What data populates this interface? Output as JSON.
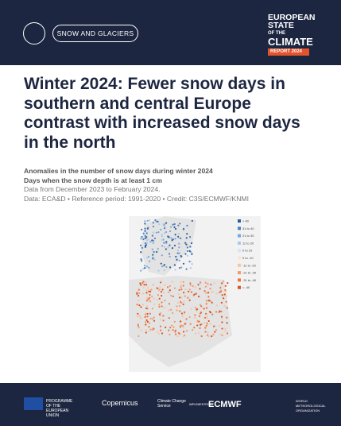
{
  "header": {
    "badge": "SNOW AND GLACIERS",
    "logo_lines": [
      "EUROPEAN",
      "STATE",
      "OF THE",
      "CLIMATE"
    ],
    "logo_tag": "REPORT 2024"
  },
  "title": "Winter 2024: Fewer snow days in southern and central Europe contrast with increased snow days in the north",
  "description": {
    "lines": [
      "Anomalies in the number of snow days during winter 2024",
      "Days when the snow depth is at least 1 cm",
      "Data from December 2023 to February 2024.",
      "Data: ECA&D • Reference period: 1991-2020 • Credit: C3S/ECMWF/KNMI"
    ]
  },
  "map": {
    "legend": [
      "> 40",
      "31 to 40",
      "21 to 30",
      "11 to 20",
      "0 to 10",
      "0 to -10",
      "-11 to -20",
      "-21 to -30",
      "-31 to -40",
      "< -40"
    ]
  },
  "footer": {
    "eu": "PROGRAMME OF THE EUROPEAN UNION",
    "copernicus": "Copernicus",
    "c3s": "Climate Change Service",
    "implemented": "IMPLEMENTED BY",
    "ecmwf": "ECMWF",
    "wmo": "WORLD METEOROLOGICAL ORGANIZATION"
  }
}
